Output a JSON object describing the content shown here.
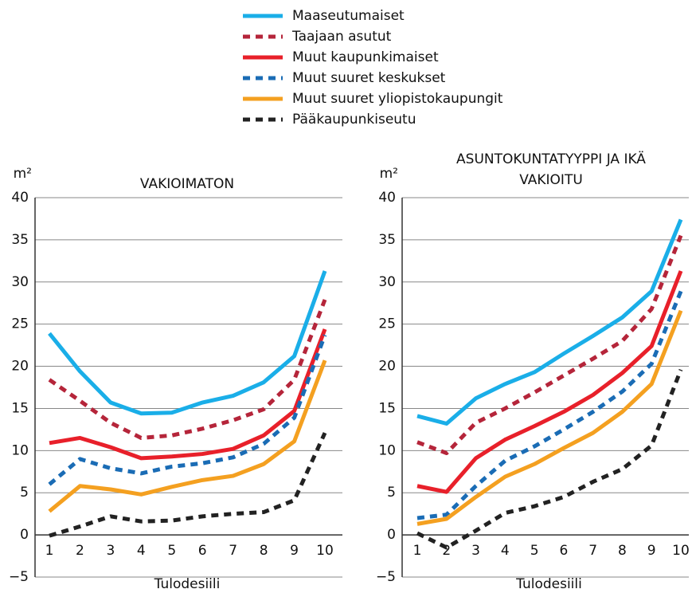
{
  "chart_data": [
    {
      "type": "line",
      "title": "VAKIOIMATON",
      "ylabel": "m²",
      "xlabel": "Tulodesiili",
      "categories": [
        "1",
        "2",
        "3",
        "4",
        "5",
        "6",
        "7",
        "8",
        "9",
        "10"
      ],
      "ylim": [
        -5,
        40
      ],
      "yticks": [
        {
          "value": -5,
          "label": "−5"
        },
        0,
        5,
        10,
        15,
        20,
        25,
        30,
        35,
        40
      ],
      "grid": true,
      "series": [
        {
          "name": "Maaseutumaiset",
          "color": "#1aaee8",
          "dashed": false,
          "values": [
            23.9,
            19.4,
            15.7,
            14.4,
            14.5,
            15.7,
            16.5,
            18.1,
            21.2,
            31.3
          ]
        },
        {
          "name": "Taajaan asutut",
          "color": "#b5253a",
          "dashed": true,
          "values": [
            18.4,
            15.9,
            13.3,
            11.5,
            11.8,
            12.6,
            13.6,
            14.9,
            18.4,
            27.9
          ]
        },
        {
          "name": "Muut kaupunkimaiset",
          "color": "#e8202a",
          "dashed": false,
          "values": [
            10.9,
            11.5,
            10.4,
            9.1,
            9.3,
            9.6,
            10.2,
            11.8,
            14.7,
            24.4
          ]
        },
        {
          "name": "Muut suuret keskukset",
          "color": "#1a6cb5",
          "dashed": true,
          "values": [
            6.0,
            9.0,
            7.9,
            7.3,
            8.1,
            8.5,
            9.2,
            10.8,
            13.9,
            23.7
          ]
        },
        {
          "name": "Muut suuret yliopistokaupungit",
          "color": "#f4a020",
          "dashed": false,
          "values": [
            2.8,
            5.8,
            5.4,
            4.8,
            5.7,
            6.5,
            7.0,
            8.4,
            11.1,
            20.7
          ]
        },
        {
          "name": "Pääkaupunkiseutu",
          "color": "#222222",
          "dashed": true,
          "values": [
            -0.1,
            1.0,
            2.2,
            1.6,
            1.7,
            2.2,
            2.5,
            2.7,
            4.1,
            12.1
          ]
        }
      ]
    },
    {
      "type": "line",
      "title": "ASUNTOKUNTATYYPPI JA IKÄ VAKIOITU",
      "ylabel": "m²",
      "xlabel": "Tulodesiili",
      "categories": [
        "1",
        "2",
        "3",
        "4",
        "5",
        "6",
        "7",
        "8",
        "9",
        "10"
      ],
      "ylim": [
        -5,
        40
      ],
      "yticks": [
        {
          "value": -5,
          "label": "−5"
        },
        0,
        5,
        10,
        15,
        20,
        25,
        30,
        35,
        40
      ],
      "grid": true,
      "series": [
        {
          "values": [
            14.1,
            13.2,
            16.2,
            17.9,
            19.3,
            21.5,
            23.6,
            25.8,
            28.9,
            37.4
          ]
        },
        {
          "values": [
            11.0,
            9.7,
            13.3,
            15.0,
            16.9,
            18.9,
            20.9,
            23.0,
            26.8,
            35.5
          ]
        },
        {
          "values": [
            5.8,
            5.1,
            9.1,
            11.3,
            12.9,
            14.6,
            16.6,
            19.2,
            22.4,
            31.3
          ]
        },
        {
          "values": [
            2.0,
            2.4,
            5.8,
            8.8,
            10.5,
            12.5,
            14.6,
            17.0,
            20.3,
            28.9
          ]
        },
        {
          "values": [
            1.3,
            1.9,
            4.5,
            6.9,
            8.4,
            10.3,
            12.1,
            14.6,
            17.9,
            26.6
          ]
        },
        {
          "values": [
            0.2,
            -1.5,
            0.5,
            2.6,
            3.4,
            4.5,
            6.3,
            7.8,
            10.6,
            19.6
          ]
        }
      ]
    }
  ]
}
